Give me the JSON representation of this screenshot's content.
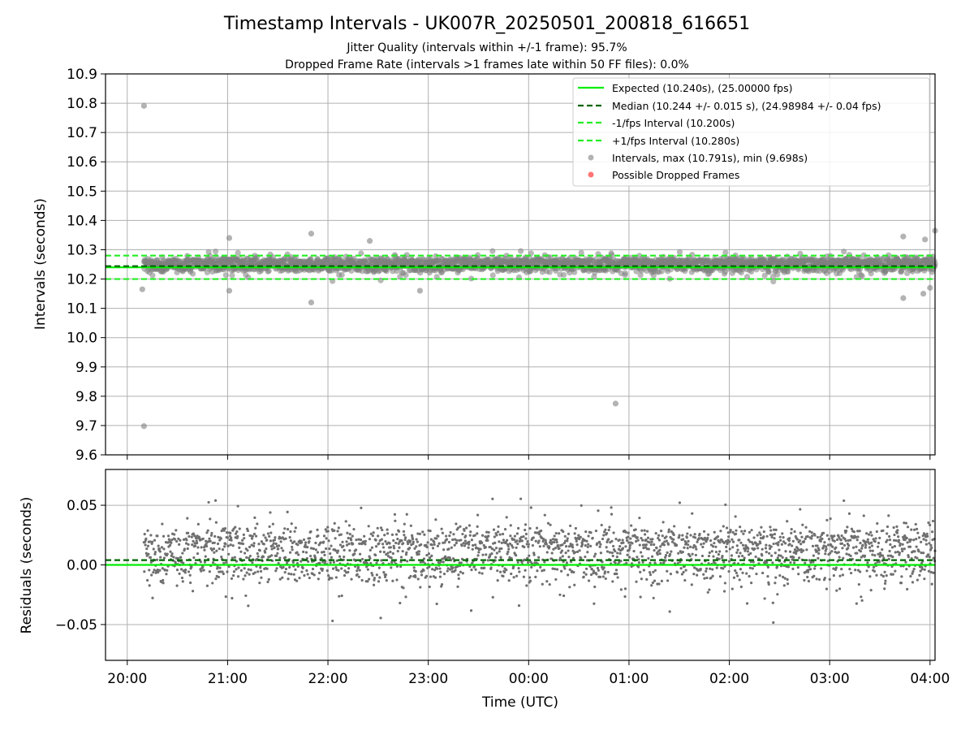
{
  "chart_data": [
    {
      "type": "scatter",
      "panel": "intervals",
      "title": "Timestamp Intervals - UK007R_20250501_200818_616651",
      "subtitle_1": "Jitter Quality (intervals within +/-1 frame): 95.7%",
      "subtitle_2": "Dropped Frame Rate (intervals >1 frames late within 50 FF files): 0.0%",
      "ylabel": "Intervals (seconds)",
      "ylim": [
        9.6,
        10.9
      ],
      "yticks": [
        9.6,
        9.7,
        9.8,
        9.9,
        10.0,
        10.1,
        10.2,
        10.3,
        10.4,
        10.5,
        10.6,
        10.7,
        10.8,
        10.9
      ],
      "ytick_labels": [
        "9.6",
        "9.7",
        "9.8",
        "9.9",
        "10.0",
        "10.1",
        "10.2",
        "10.3",
        "10.4",
        "10.5",
        "10.6",
        "10.7",
        "10.8",
        "10.9"
      ],
      "grid": true,
      "legend_position": "top-right",
      "lines": [
        {
          "name": "Expected (10.240s), (25.00000 fps)",
          "y": 10.24,
          "color": "#00ee00",
          "style": "solid"
        },
        {
          "name": "Median (10.244 +/- 0.015 s), (24.98984 +/- 0.04 fps)",
          "y": 10.244,
          "color": "#006400",
          "style": "dashed"
        },
        {
          "name": "-1/fps Interval (10.200s)",
          "y": 10.2,
          "color": "#22ee22",
          "style": "dashed"
        },
        {
          "name": "+1/fps Interval (10.280s)",
          "y": 10.28,
          "color": "#22ee22",
          "style": "dashed"
        }
      ],
      "series": [
        {
          "name": "Intervals, max (10.791s), min (9.698s)",
          "color": "#999999",
          "max": 10.791,
          "min": 9.698,
          "typical_range": [
            10.2,
            10.29
          ]
        },
        {
          "name": "Possible Dropped Frames",
          "color": "#ff6666",
          "count": 0
        }
      ],
      "highlight_points": [
        {
          "x": "20:10",
          "y": 10.791
        },
        {
          "x": "20:10",
          "y": 9.698
        },
        {
          "x": "00:52",
          "y": 9.775
        },
        {
          "x": "20:09",
          "y": 10.165
        },
        {
          "x": "21:01",
          "y": 10.34
        },
        {
          "x": "21:01",
          "y": 10.16
        },
        {
          "x": "21:50",
          "y": 10.355
        },
        {
          "x": "21:50",
          "y": 10.12
        },
        {
          "x": "22:25",
          "y": 10.33
        },
        {
          "x": "22:55",
          "y": 10.16
        },
        {
          "x": "04:03",
          "y": 10.365
        },
        {
          "x": "03:44",
          "y": 10.345
        },
        {
          "x": "03:44",
          "y": 10.135
        },
        {
          "x": "04:00",
          "y": 10.17
        },
        {
          "x": "03:56",
          "y": 10.15
        },
        {
          "x": "03:57",
          "y": 10.335
        }
      ]
    },
    {
      "type": "scatter",
      "panel": "residuals",
      "ylabel": "Residuals (seconds)",
      "xlabel": "Time (UTC)",
      "ylim": [
        -0.08,
        0.08
      ],
      "yticks": [
        -0.05,
        0.0,
        0.05
      ],
      "ytick_labels": [
        "−0.05",
        "0.00",
        "0.05"
      ],
      "x_range": [
        "19:47",
        "04:03"
      ],
      "xticks": [
        "20:00",
        "21:00",
        "22:00",
        "23:00",
        "00:00",
        "01:00",
        "02:00",
        "03:00",
        "04:00"
      ],
      "grid": true,
      "lines": [
        {
          "name": "Expected",
          "y": 0.0,
          "color": "#00ee00",
          "style": "solid"
        },
        {
          "name": "Median",
          "y": 0.004,
          "color": "#006400",
          "style": "dashed"
        }
      ],
      "series": [
        {
          "name": "Residuals",
          "color": "#777777",
          "clusters": [
            0.0,
            0.02
          ],
          "typical_range": [
            -0.04,
            0.06
          ]
        }
      ]
    }
  ]
}
